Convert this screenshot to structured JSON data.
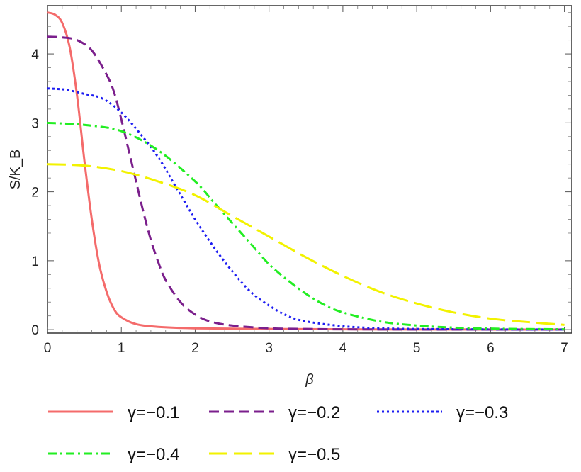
{
  "chart_data": {
    "type": "line",
    "xlabel": "β",
    "ylabel": "S/K_B",
    "xlim": [
      0,
      7.1
    ],
    "ylim": [
      -0.05,
      4.7
    ],
    "xticks": [
      0,
      1,
      2,
      3,
      4,
      5,
      6,
      7
    ],
    "yticks": [
      0,
      1,
      2,
      3,
      4
    ],
    "grid": false,
    "legend_position": "bottom",
    "series": [
      {
        "name": "γ=−0.1",
        "color": "#f46b6b",
        "dash": "solid",
        "x": [
          0,
          0.1,
          0.2,
          0.3,
          0.4,
          0.5,
          0.6,
          0.7,
          0.8,
          0.9,
          1.0,
          1.2,
          1.5,
          2,
          3,
          4,
          5,
          6,
          7
        ],
        "y": [
          4.6,
          4.57,
          4.45,
          4.1,
          3.4,
          2.45,
          1.6,
          0.95,
          0.55,
          0.3,
          0.18,
          0.08,
          0.04,
          0.02,
          0.01,
          0.005,
          0.003,
          0.002,
          0.001
        ]
      },
      {
        "name": "γ=−0.2",
        "color": "#7b1f8c",
        "dash": "dashed",
        "x": [
          0,
          0.2,
          0.4,
          0.6,
          0.8,
          0.9,
          1.0,
          1.1,
          1.2,
          1.3,
          1.4,
          1.5,
          1.6,
          1.8,
          2.0,
          2.2,
          2.5,
          3,
          3.5,
          4,
          5,
          6,
          7
        ],
        "y": [
          4.25,
          4.24,
          4.2,
          4.05,
          3.7,
          3.45,
          3.05,
          2.6,
          2.15,
          1.7,
          1.3,
          0.98,
          0.72,
          0.4,
          0.22,
          0.12,
          0.06,
          0.02,
          0.01,
          0.005,
          0.002,
          0.001,
          0.001
        ]
      },
      {
        "name": "γ=−0.3",
        "color": "#1c1cf2",
        "dash": "dotted",
        "x": [
          0,
          0.25,
          0.5,
          0.75,
          1.0,
          1.25,
          1.5,
          1.75,
          2.0,
          2.25,
          2.5,
          2.75,
          3.0,
          3.25,
          3.5,
          4,
          4.5,
          5,
          6,
          7
        ],
        "y": [
          3.5,
          3.48,
          3.42,
          3.35,
          3.15,
          2.85,
          2.5,
          2.05,
          1.6,
          1.2,
          0.85,
          0.55,
          0.35,
          0.2,
          0.12,
          0.05,
          0.02,
          0.01,
          0.004,
          0.002
        ]
      },
      {
        "name": "γ=−0.4",
        "color": "#22ee22",
        "dash": "dashdot",
        "x": [
          0,
          0.5,
          1.0,
          1.5,
          2.0,
          2.25,
          2.5,
          2.75,
          3.0,
          3.25,
          3.5,
          3.75,
          4.0,
          4.5,
          5.0,
          5.5,
          6.0,
          7.0
        ],
        "y": [
          3.0,
          2.97,
          2.88,
          2.6,
          2.15,
          1.85,
          1.55,
          1.25,
          0.95,
          0.72,
          0.52,
          0.36,
          0.25,
          0.12,
          0.06,
          0.03,
          0.015,
          0.005
        ]
      },
      {
        "name": "γ=−0.5",
        "color": "#f2f200",
        "dash": "longdash",
        "x": [
          0,
          0.5,
          1.0,
          1.5,
          2.0,
          2.5,
          3.0,
          3.5,
          4.0,
          4.5,
          5.0,
          5.5,
          6.0,
          6.5,
          7.0
        ],
        "y": [
          2.4,
          2.38,
          2.3,
          2.15,
          1.95,
          1.65,
          1.35,
          1.05,
          0.78,
          0.55,
          0.38,
          0.25,
          0.16,
          0.11,
          0.07
        ]
      }
    ]
  }
}
